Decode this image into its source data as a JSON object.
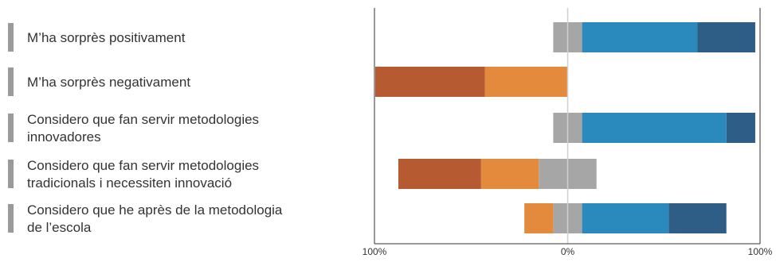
{
  "chart_data": {
    "type": "bar",
    "orientation": "horizontal-diverging",
    "stacked": true,
    "title": "",
    "xlabel": "",
    "ylabel": "",
    "xlim": [
      -100,
      100
    ],
    "x_ticks": [
      "100%",
      "0%",
      "100%"
    ],
    "grid": false,
    "legend": "none",
    "categories": [
      [
        "M’ha sorprès positivament"
      ],
      [
        "M’ha sorprès negativament"
      ],
      [
        "Considero que fan servir metodologies",
        "innovadores"
      ],
      [
        "Considero que fan servir metodologies",
        "tradicionals i necessiten innovació"
      ],
      [
        "Considero que he après de la metodologia",
        "de l’escola"
      ]
    ],
    "series": [
      {
        "color": "#b55a31",
        "values": [
          0,
          57,
          0,
          43,
          0
        ]
      },
      {
        "color": "#e48a3c",
        "values": [
          0,
          43,
          0,
          30,
          15
        ]
      },
      {
        "color": "#a7a6a6",
        "values": [
          15,
          0,
          15,
          30,
          15
        ]
      },
      {
        "color": "#2a89bd",
        "values": [
          60,
          0,
          75,
          0,
          45
        ]
      },
      {
        "color": "#2e5e86",
        "values": [
          30,
          0,
          15,
          0,
          30
        ]
      }
    ],
    "neutral_series_index": 2,
    "negative_series_indices": [
      0,
      1
    ],
    "colors": {
      "label_marker": "#9a9a9a",
      "axis_line": "#333333",
      "zero_line": "#d0d0d0"
    }
  }
}
